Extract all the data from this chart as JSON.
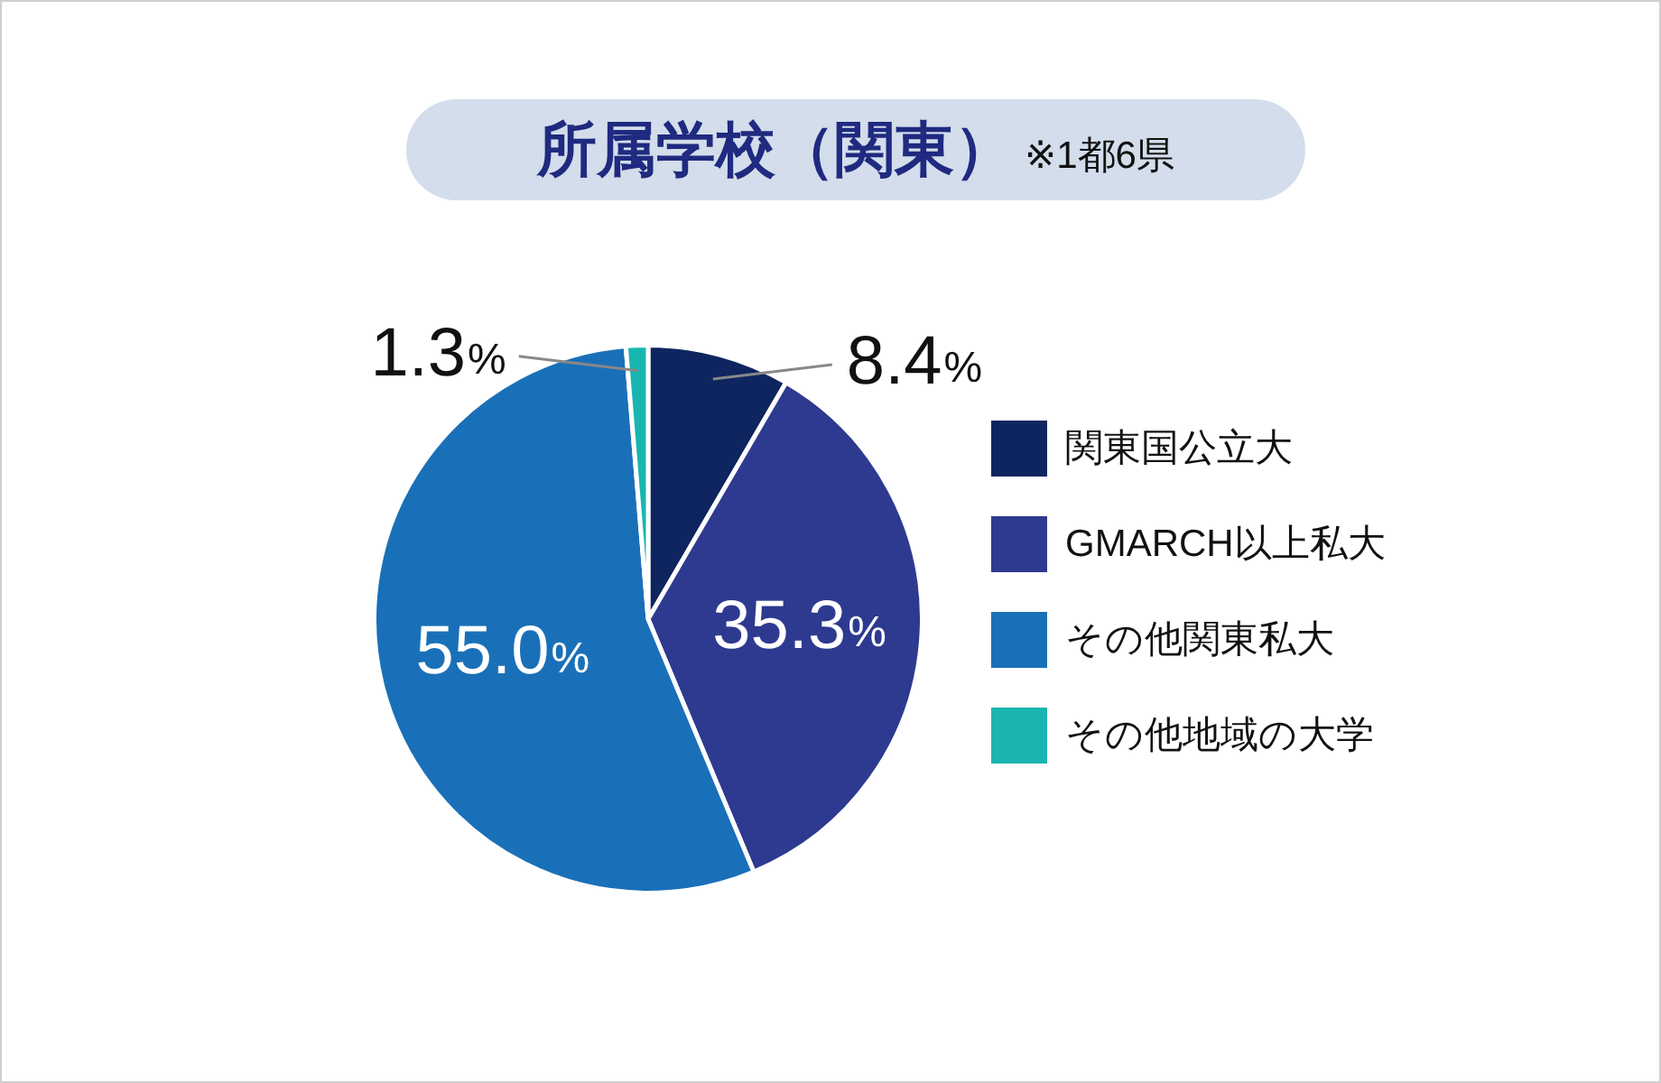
{
  "chart_data": {
    "type": "pie",
    "title": "所属学校（関東）",
    "subtitle": "※1都6県",
    "categories": [
      "関東国公立大",
      "GMARCH以上私大",
      "その他関東私大",
      "その他地域の大学"
    ],
    "values": [
      8.4,
      35.3,
      55.0,
      1.3
    ],
    "colors": [
      "#0f2560",
      "#2e3a8f",
      "#1a70b8",
      "#1ab5b0"
    ],
    "value_labels": [
      "8.4%",
      "35.3%",
      "55.0%",
      "1.3%"
    ],
    "legend": "right"
  }
}
